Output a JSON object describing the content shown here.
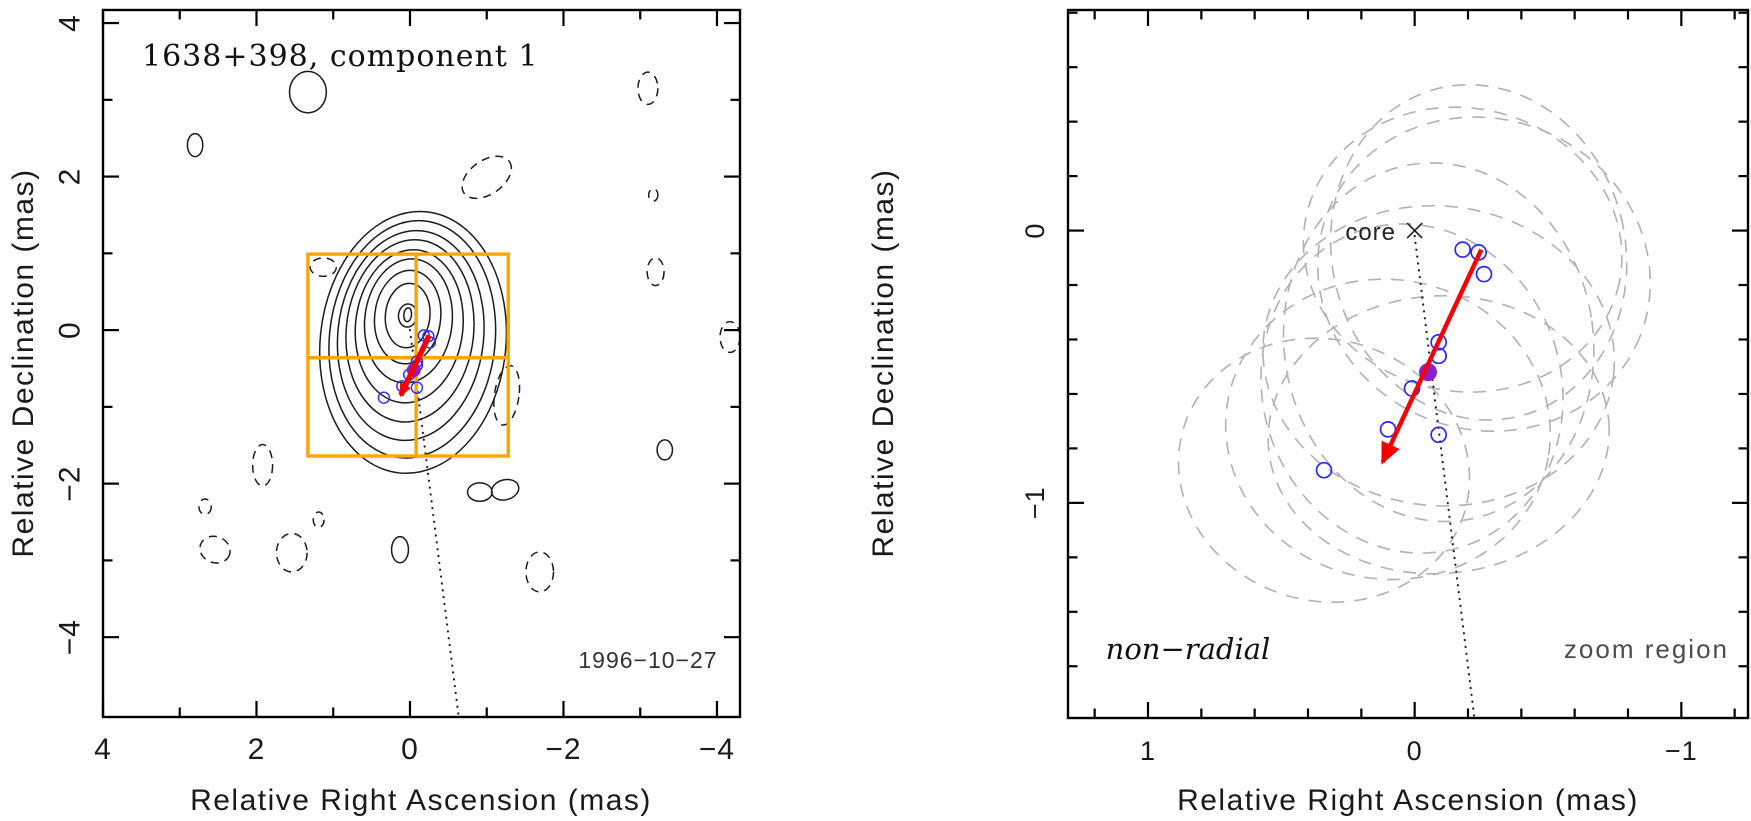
{
  "colors": {
    "frame": "#000000",
    "contour": "#1c1c1c",
    "zoom_box": "#ffa400",
    "arrow": "#f40000",
    "component": "#2828ff",
    "mean": "#8a1fd0",
    "error_ellipse": "#b2b2b2",
    "dotted_line": "#222222",
    "text": "#1a1a1a",
    "muted_text": "#4d4d4d"
  },
  "chart_data": [
    {
      "type": "contour",
      "panel": "left",
      "title": "1638+398, component 1",
      "epoch_label": "1996−10−27",
      "xlabel": "Relative Right Ascension (mas)",
      "ylabel": "Relative Declination (mas)",
      "xlim": [
        4.0,
        -4.3
      ],
      "ylim": [
        4.17,
        -5.04
      ],
      "grid": false,
      "x_major_ticks": [
        {
          "v": 4,
          "label": "4"
        },
        {
          "v": 2,
          "label": "2"
        },
        {
          "v": 0,
          "label": "0"
        },
        {
          "v": -2,
          "label": "−2"
        },
        {
          "v": -4,
          "label": "−4"
        }
      ],
      "x_minor_ticks": [
        3,
        1,
        -1,
        -3
      ],
      "y_major_ticks": [
        {
          "v": 4,
          "label": "4"
        },
        {
          "v": 2,
          "label": "2"
        },
        {
          "v": 0,
          "label": "0"
        },
        {
          "v": -2,
          "label": "−2"
        },
        {
          "v": -4,
          "label": "−4"
        }
      ],
      "y_minor_ticks": [
        3,
        1,
        -1,
        -3
      ],
      "contour_rotation_deg": 6,
      "contours": [
        {
          "cx": 0.03,
          "cy": 0.2,
          "rx": 0.05,
          "ry": 0.09
        },
        {
          "cx": 0.03,
          "cy": 0.19,
          "rx": 0.12,
          "ry": 0.15
        },
        {
          "cx": 0.03,
          "cy": 0.19,
          "rx": 0.29,
          "ry": 0.42
        },
        {
          "cx": 0.03,
          "cy": 0.17,
          "rx": 0.43,
          "ry": 0.61
        },
        {
          "cx": 0.02,
          "cy": 0.12,
          "rx": 0.57,
          "ry": 0.81
        },
        {
          "cx": 0.01,
          "cy": 0.05,
          "rx": 0.7,
          "ry": 1.0
        },
        {
          "cx": 0.0,
          "cy": -0.01,
          "rx": 0.83,
          "ry": 1.19
        },
        {
          "cx": -0.01,
          "cy": -0.07,
          "rx": 0.95,
          "ry": 1.37
        },
        {
          "cx": -0.03,
          "cy": -0.12,
          "rx": 1.08,
          "ry": 1.55
        },
        {
          "cx": -0.04,
          "cy": -0.16,
          "rx": 1.21,
          "ry": 1.71
        }
      ],
      "noise_contours": [
        {
          "cx": 1.33,
          "cy": 3.1,
          "rx": 0.24,
          "ry": 0.27,
          "rot": 0,
          "style": "solid"
        },
        {
          "cx": 2.8,
          "cy": 2.41,
          "rx": 0.1,
          "ry": 0.15,
          "rot": 0,
          "style": "solid"
        },
        {
          "cx": -3.1,
          "cy": 3.15,
          "rx": 0.13,
          "ry": 0.21,
          "rot": 0,
          "style": "dashed"
        },
        {
          "cx": -1.0,
          "cy": 1.99,
          "rx": 0.36,
          "ry": 0.22,
          "rot": -35,
          "style": "dashed"
        },
        {
          "cx": -3.17,
          "cy": 1.76,
          "rx": 0.06,
          "ry": 0.08,
          "rot": 0,
          "style": "dashed"
        },
        {
          "cx": -3.2,
          "cy": 0.76,
          "rx": 0.11,
          "ry": 0.18,
          "rot": 0,
          "style": "dashed"
        },
        {
          "cx": -4.17,
          "cy": -0.09,
          "rx": 0.13,
          "ry": 0.2,
          "rot": 0,
          "style": "dashed"
        },
        {
          "cx": -1.26,
          "cy": -0.85,
          "rx": 0.16,
          "ry": 0.39,
          "rot": 8,
          "style": "dashed"
        },
        {
          "cx": 1.13,
          "cy": 0.82,
          "rx": 0.17,
          "ry": 0.12,
          "rot": 0,
          "style": "dashed"
        },
        {
          "cx": 1.92,
          "cy": -1.76,
          "rx": 0.13,
          "ry": 0.27,
          "rot": 0,
          "style": "dashed"
        },
        {
          "cx": 2.67,
          "cy": -2.3,
          "rx": 0.08,
          "ry": 0.1,
          "rot": 0,
          "style": "dashed"
        },
        {
          "cx": 2.54,
          "cy": -2.86,
          "rx": 0.2,
          "ry": 0.17,
          "rot": 20,
          "style": "dashed"
        },
        {
          "cx": 1.54,
          "cy": -2.9,
          "rx": 0.2,
          "ry": 0.25,
          "rot": 0,
          "style": "dashed"
        },
        {
          "cx": 1.19,
          "cy": -2.47,
          "rx": 0.07,
          "ry": 0.1,
          "rot": 0,
          "style": "dashed"
        },
        {
          "cx": 0.13,
          "cy": -2.86,
          "rx": 0.11,
          "ry": 0.17,
          "rot": 0,
          "style": "solid"
        },
        {
          "cx": -0.91,
          "cy": -2.11,
          "rx": 0.16,
          "ry": 0.12,
          "rot": 0,
          "style": "solid"
        },
        {
          "cx": -1.24,
          "cy": -2.08,
          "rx": 0.18,
          "ry": 0.13,
          "rot": -15,
          "style": "solid"
        },
        {
          "cx": -3.32,
          "cy": -1.56,
          "rx": 0.1,
          "ry": 0.13,
          "rot": 0,
          "style": "solid"
        },
        {
          "cx": -1.69,
          "cy": -3.15,
          "rx": 0.18,
          "ry": 0.26,
          "rot": 0,
          "style": "dashed"
        }
      ],
      "zoom_box": {
        "x1": 1.33,
        "x2": -1.28,
        "y1": 0.99,
        "y2": -1.64,
        "cross_x": -0.08,
        "cross_y": -0.36
      },
      "jet_line": {
        "x1": 0.0,
        "y1": 0.0,
        "x2": -0.63,
        "y2": -5.0
      },
      "components": [
        {
          "x": -0.18,
          "y": -0.07
        },
        {
          "x": -0.24,
          "y": -0.08
        },
        {
          "x": -0.26,
          "y": -0.16
        },
        {
          "x": -0.09,
          "y": -0.41
        },
        {
          "x": -0.09,
          "y": -0.46
        },
        {
          "x": 0.01,
          "y": -0.58
        },
        {
          "x": 0.1,
          "y": -0.73
        },
        {
          "x": -0.09,
          "y": -0.75
        },
        {
          "x": 0.34,
          "y": -0.88
        }
      ],
      "mean_position": {
        "x": -0.05,
        "y": -0.52
      },
      "arrow": {
        "x1": -0.25,
        "y1": -0.07,
        "x2": 0.12,
        "y2": -0.85
      }
    },
    {
      "type": "scatter",
      "panel": "right",
      "xlabel": "Relative Right Ascension (mas)",
      "ylabel": "Relative Declination (mas)",
      "xlim": [
        1.3,
        -1.25
      ],
      "ylim": [
        0.81,
        -1.79
      ],
      "grid": false,
      "x_major_ticks": [
        {
          "v": 1,
          "label": "1"
        },
        {
          "v": 0,
          "label": "0"
        },
        {
          "v": -1,
          "label": "−1"
        }
      ],
      "x_minor_ticks": [
        1.2,
        0.8,
        0.6,
        0.4,
        0.2,
        -0.2,
        -0.4,
        -0.6,
        -0.8,
        -1.2
      ],
      "y_major_ticks": [
        {
          "v": 0,
          "label": "0"
        },
        {
          "v": -1,
          "label": "−1"
        }
      ],
      "y_minor_ticks": [
        0.8,
        0.6,
        0.4,
        0.2,
        -0.2,
        -0.4,
        -0.6,
        -0.8,
        -1.2,
        -1.4,
        -1.6
      ],
      "core": {
        "x": 0.0,
        "y": 0.0,
        "label": "core"
      },
      "components": [
        {
          "x": -0.18,
          "y": -0.07
        },
        {
          "x": -0.24,
          "y": -0.08
        },
        {
          "x": -0.26,
          "y": -0.16
        },
        {
          "x": -0.09,
          "y": -0.41
        },
        {
          "x": -0.09,
          "y": -0.46
        },
        {
          "x": 0.01,
          "y": -0.58
        },
        {
          "x": 0.1,
          "y": -0.73
        },
        {
          "x": -0.09,
          "y": -0.75
        },
        {
          "x": 0.34,
          "y": -0.88
        }
      ],
      "mean_position": {
        "x": -0.05,
        "y": -0.52
      },
      "error_ellipses": [
        {
          "cx": -0.18,
          "cy": -0.07,
          "rx": 0.6,
          "ry": 0.52,
          "rot": 12
        },
        {
          "cx": -0.24,
          "cy": -0.08,
          "rx": 0.55,
          "ry": 0.62,
          "rot": -14
        },
        {
          "cx": -0.26,
          "cy": -0.16,
          "rx": 0.63,
          "ry": 0.57,
          "rot": 22
        },
        {
          "cx": -0.09,
          "cy": -0.41,
          "rx": 0.58,
          "ry": 0.66,
          "rot": -8
        },
        {
          "cx": -0.09,
          "cy": -0.46,
          "rx": 0.66,
          "ry": 0.55,
          "rot": 6
        },
        {
          "cx": 0.01,
          "cy": -0.58,
          "rx": 0.56,
          "ry": 0.61,
          "rot": -18
        },
        {
          "cx": 0.1,
          "cy": -0.73,
          "rx": 0.61,
          "ry": 0.55,
          "rot": 10
        },
        {
          "cx": -0.09,
          "cy": -0.75,
          "rx": 0.64,
          "ry": 0.51,
          "rot": -4
        },
        {
          "cx": 0.34,
          "cy": -0.88,
          "rx": 0.55,
          "ry": 0.48,
          "rot": 16
        }
      ],
      "jet_line": {
        "x1": 0.0,
        "y1": -0.02,
        "x2": -0.224,
        "y2": -1.79
      },
      "arrow": {
        "x1": -0.25,
        "y1": -0.07,
        "x2": 0.12,
        "y2": -0.85
      },
      "annotation_left": "non−radial",
      "annotation_right": "zoom region"
    }
  ]
}
